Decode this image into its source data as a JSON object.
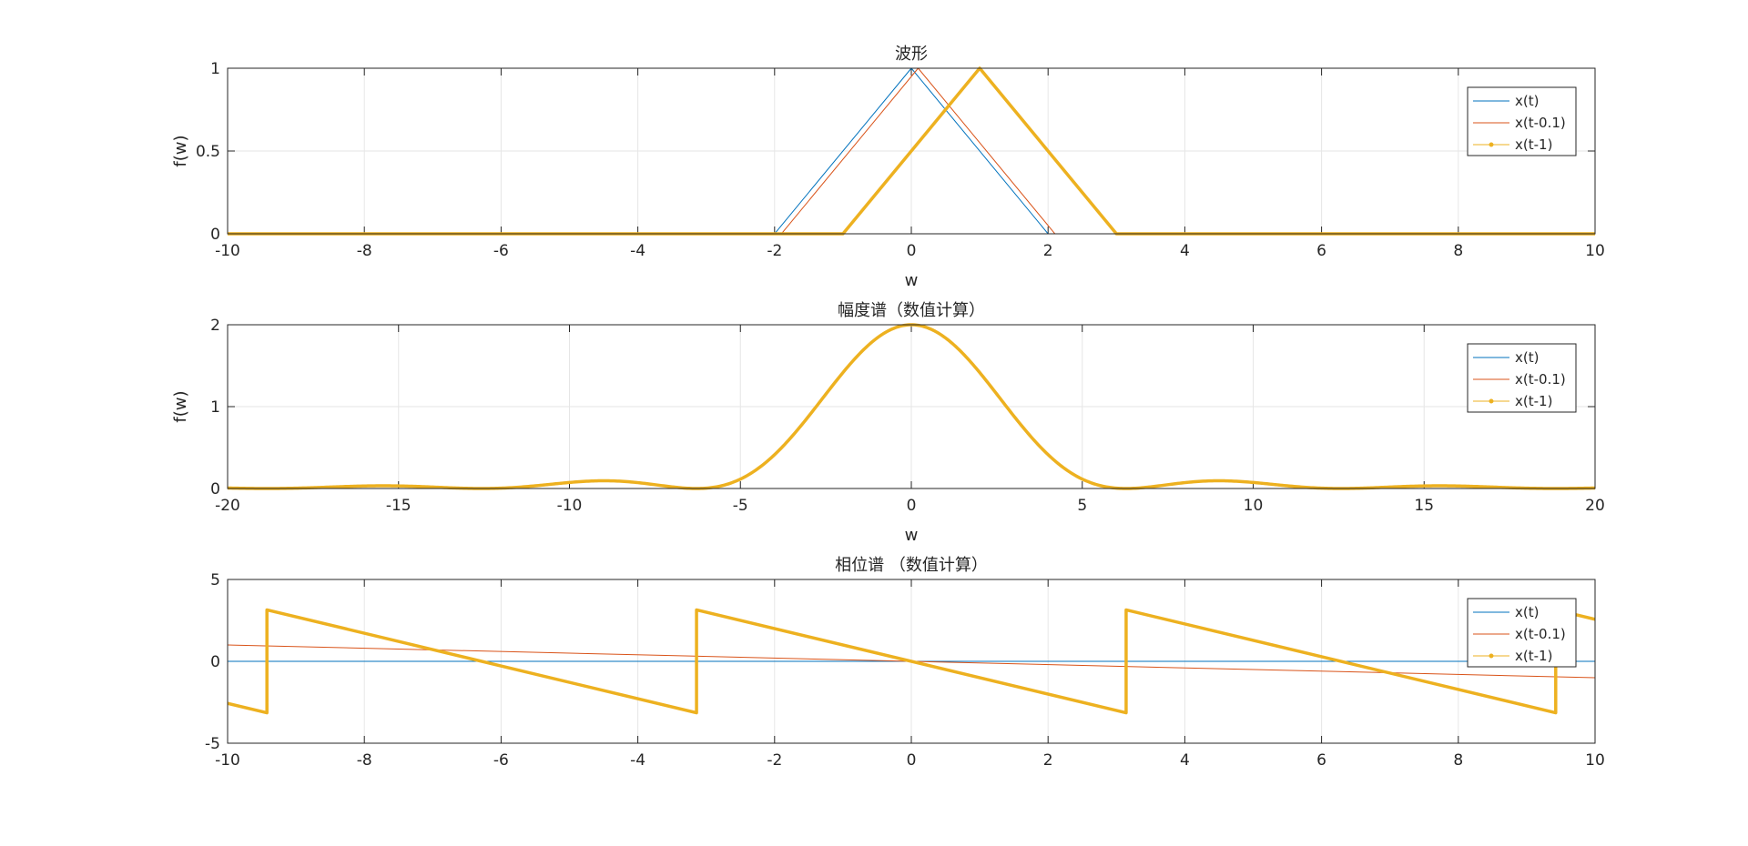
{
  "figure": {
    "background": "#ffffff"
  },
  "chart_data": [
    {
      "type": "line",
      "title": "波形",
      "xlabel": "w",
      "ylabel": "f(w)",
      "xlim": [
        -10,
        10
      ],
      "ylim": [
        0,
        1
      ],
      "xticks": [
        "-10",
        "-8",
        "-6",
        "-4",
        "-2",
        "0",
        "2",
        "4",
        "6",
        "8",
        "10"
      ],
      "yticks": [
        "0",
        "0.5",
        "1"
      ],
      "grid": true,
      "legend": {
        "position": "top-right",
        "entries": [
          "x(t)",
          "x(t-0.1)",
          "x(t-1)"
        ]
      },
      "series": [
        {
          "name": "x(t)",
          "color": "#0072BD",
          "x": [
            -10,
            -2,
            0,
            2,
            10
          ],
          "y": [
            0,
            0,
            1,
            0,
            0
          ]
        },
        {
          "name": "x(t-0.1)",
          "color": "#D95319",
          "x": [
            -10,
            -1.9,
            0.1,
            2.1,
            10
          ],
          "y": [
            0,
            0,
            1,
            0,
            0
          ]
        },
        {
          "name": "x(t-1)",
          "color": "#EDB120",
          "x": [
            -10,
            -1,
            1,
            3,
            10
          ],
          "y": [
            0,
            0,
            1,
            0,
            0
          ]
        }
      ]
    },
    {
      "type": "line",
      "title": "幅度谱（数值计算）",
      "xlabel": "w",
      "ylabel": "f(w)",
      "xlim": [
        -20,
        20
      ],
      "ylim": [
        0,
        2
      ],
      "xticks": [
        "-20",
        "-15",
        "-10",
        "-5",
        "0",
        "5",
        "10",
        "15",
        "20"
      ],
      "yticks": [
        "0",
        "1",
        "2"
      ],
      "grid": true,
      "legend": {
        "position": "top-right",
        "entries": [
          "x(t)",
          "x(t-0.1)",
          "x(t-1)"
        ]
      },
      "series": [
        {
          "name": "x(t)",
          "color": "#0072BD",
          "function": "2*sinc^2(w/2)",
          "x_range": [
            -20,
            20
          ]
        },
        {
          "name": "x(t-0.1)",
          "color": "#D95319",
          "function": "2*sinc^2(w/2)",
          "x_range": [
            -20,
            20
          ]
        },
        {
          "name": "x(t-1)",
          "color": "#EDB120",
          "function": "2*sinc^2(w/2)",
          "x_range": [
            -20,
            20
          ]
        }
      ]
    },
    {
      "type": "line",
      "title": "相位谱 （数值计算）",
      "xlabel": "",
      "ylabel": "",
      "xlim": [
        -10,
        10
      ],
      "ylim": [
        -5,
        5
      ],
      "xticks": [
        "-10",
        "-8",
        "-6",
        "-4",
        "-2",
        "0",
        "2",
        "4",
        "6",
        "8",
        "10"
      ],
      "yticks": [
        "-5",
        "0",
        "5"
      ],
      "grid": true,
      "legend": {
        "position": "top-right",
        "entries": [
          "x(t)",
          "x(t-0.1)",
          "x(t-1)"
        ]
      },
      "series": [
        {
          "name": "x(t)",
          "color": "#0072BD",
          "x": [
            -10,
            10
          ],
          "y": [
            0,
            0
          ]
        },
        {
          "name": "x(t-0.1)",
          "color": "#D95319",
          "x": [
            -10,
            10
          ],
          "y": [
            1.0,
            -1.0
          ]
        },
        {
          "name": "x(t-1)",
          "color": "#EDB120",
          "x": [
            -10,
            -9.4248,
            -9.4248,
            -3.1416,
            -3.1416,
            3.1416,
            3.1416,
            9.4248,
            9.4248,
            10
          ],
          "y": [
            -2.5664,
            -3.1416,
            3.1416,
            -3.1416,
            3.1416,
            -3.1416,
            3.1416,
            -3.1416,
            3.1416,
            2.5664
          ]
        }
      ]
    }
  ]
}
